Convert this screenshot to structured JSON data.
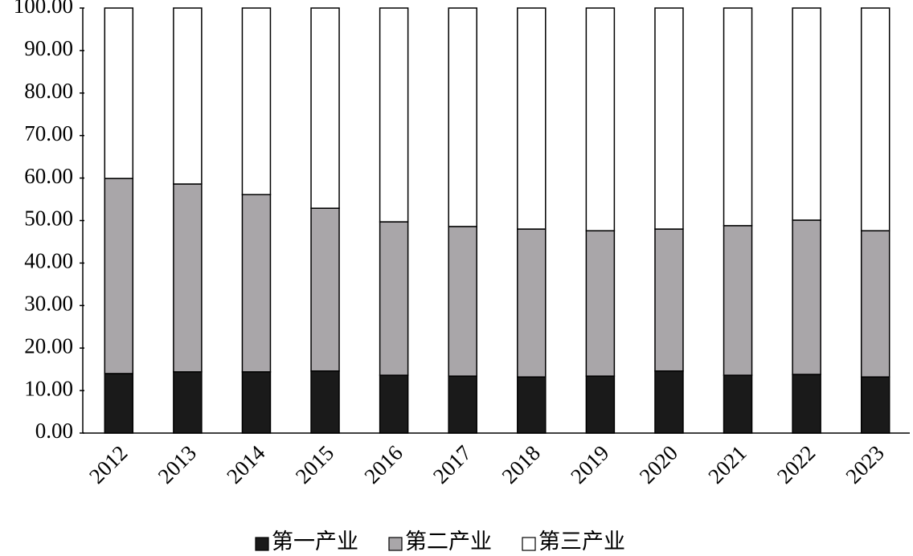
{
  "chart_data": {
    "type": "stacked-bar",
    "categories": [
      "2012",
      "2013",
      "2014",
      "2015",
      "2016",
      "2017",
      "2018",
      "2019",
      "2020",
      "2021",
      "2022",
      "2023"
    ],
    "series": [
      {
        "name": "第一产业",
        "color": "#1a1a1a",
        "values": [
          14.0,
          14.4,
          14.4,
          14.6,
          13.6,
          13.4,
          13.2,
          13.4,
          14.6,
          13.6,
          13.8,
          13.2
        ]
      },
      {
        "name": "第二产业",
        "color": "#a9a6a9",
        "values": [
          45.9,
          44.2,
          41.7,
          38.3,
          36.1,
          35.2,
          34.8,
          34.2,
          33.4,
          35.2,
          36.3,
          34.4
        ]
      },
      {
        "name": "第三产业",
        "color": "#ffffff",
        "values": [
          40.1,
          41.4,
          43.9,
          47.1,
          50.3,
          51.4,
          52.0,
          52.4,
          52.0,
          51.2,
          49.9,
          52.4
        ]
      }
    ],
    "ylim": [
      0,
      100
    ],
    "yticks": [
      {
        "value": 0,
        "label": "0.00"
      },
      {
        "value": 10,
        "label": "10.00"
      },
      {
        "value": 20,
        "label": "20.00"
      },
      {
        "value": 30,
        "label": "30.00"
      },
      {
        "value": 40,
        "label": "40.00"
      },
      {
        "value": 50,
        "label": "50.00"
      },
      {
        "value": 60,
        "label": "60.00"
      },
      {
        "value": 70,
        "label": "70.00"
      },
      {
        "value": 80,
        "label": "80.00"
      },
      {
        "value": 90,
        "label": "90.00"
      },
      {
        "value": 100,
        "label": "100.00"
      }
    ],
    "legend": "bottom"
  }
}
